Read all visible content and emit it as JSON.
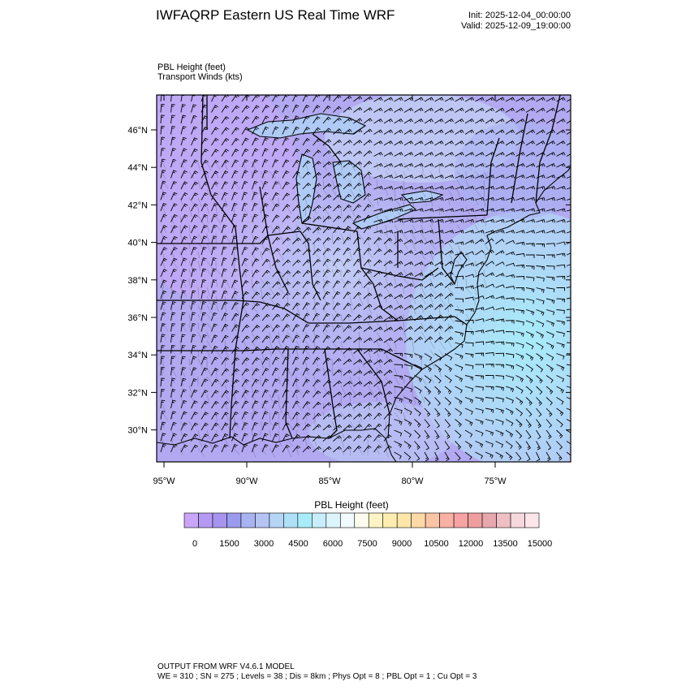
{
  "header": {
    "title": "IWFAQRP Eastern US Real Time WRF",
    "init": "Init: 2025-12-04_00:00:00",
    "valid": "Valid: 2025-12-09_19:00:00"
  },
  "plot_labels": {
    "field1": "PBL Height   (feet)",
    "field2": "Transport Winds   (kts)"
  },
  "map": {
    "lat_labels": [
      "46°N",
      "44°N",
      "42°N",
      "40°N",
      "38°N",
      "36°N",
      "34°N",
      "32°N",
      "30°N"
    ],
    "lon_labels": [
      "95°W",
      "90°W",
      "85°W",
      "80°W",
      "75°W"
    ]
  },
  "colorbar": {
    "title": "PBL Height  (feet)",
    "labels": [
      "0",
      "1500",
      "3000",
      "4500",
      "6000",
      "7500",
      "9000",
      "10500",
      "12000",
      "13500",
      "15000"
    ],
    "colors": [
      "#c9a6f7",
      "#b49af2",
      "#a694ee",
      "#9a9aee",
      "#a9b3f2",
      "#b4c4f3",
      "#b5d4f6",
      "#aee0f8",
      "#a8ecfa",
      "#c7eefa",
      "#dcf4fb",
      "#f1fafc",
      "#fbfbee",
      "#fcf4c4",
      "#fdeeb0",
      "#fde6a8",
      "#fcd9a6",
      "#fbc5a5",
      "#f9b1a3",
      "#f7a3a3",
      "#ee9e9e",
      "#e7a7ad",
      "#efbfc6",
      "#f7d8dc",
      "#fce6ea"
    ]
  },
  "footer": {
    "line1": "OUTPUT FROM WRF V4.6.1 MODEL",
    "line2": "WE = 310 ; SN = 275 ; Levels = 38 ; Dis = 8km ; Phys Opt = 8 ; PBL Opt = 1 ; Cu Opt = 3"
  }
}
